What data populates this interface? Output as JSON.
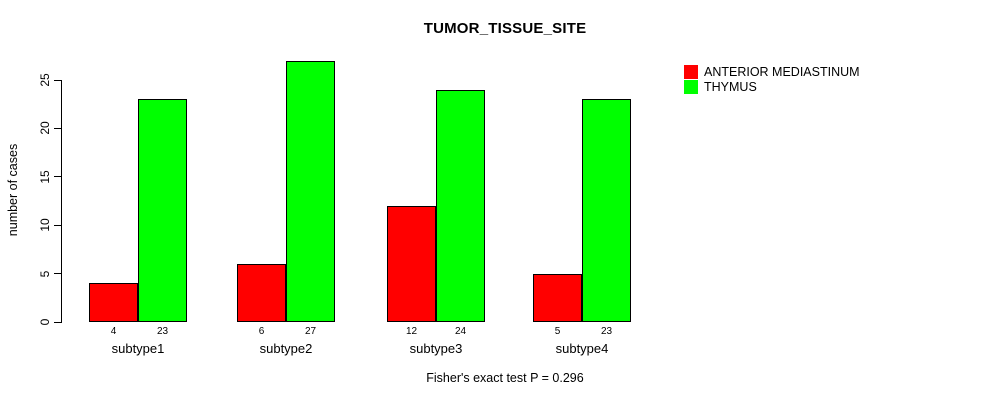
{
  "page": {
    "background": "#ffffff",
    "text_color": "#000000"
  },
  "chart_data": {
    "type": "bar",
    "title": "TUMOR_TISSUE_SITE",
    "ylabel": "number of cases",
    "xlabel": "",
    "categories": [
      "subtype1",
      "subtype2",
      "subtype3",
      "subtype4"
    ],
    "series": [
      {
        "name": "ANTERIOR MEDIASTINUM",
        "color": "#ff0000",
        "values": [
          4,
          6,
          12,
          5
        ]
      },
      {
        "name": "THYMUS",
        "color": "#00ff00",
        "values": [
          23,
          27,
          24,
          23
        ]
      }
    ],
    "bar_value_labels": [
      [
        4,
        23
      ],
      [
        6,
        27
      ],
      [
        12,
        24
      ],
      [
        5,
        23
      ]
    ],
    "yticks": [
      0,
      5,
      10,
      15,
      20,
      25
    ],
    "ylim": [
      0,
      25
    ],
    "grid": false,
    "legend_position": "topright",
    "bar_border_color": "#000000",
    "footer": "Fisher's exact test P = 0.296"
  }
}
